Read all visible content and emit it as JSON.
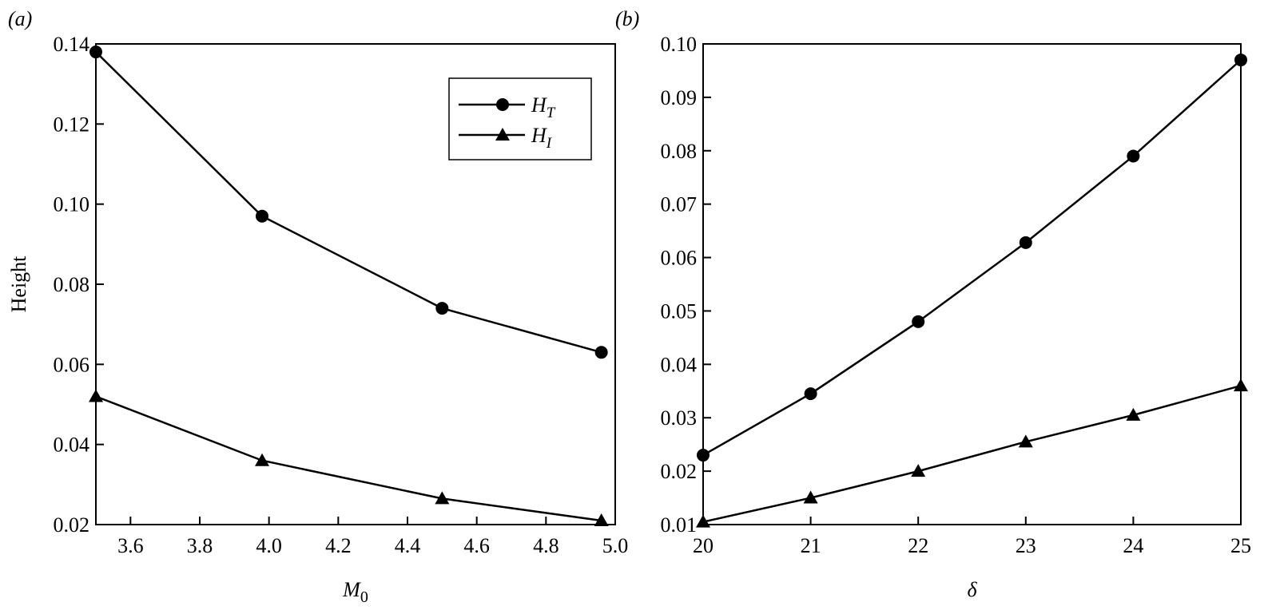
{
  "chart_data": [
    {
      "type": "line",
      "panel_label": "(a)",
      "ylabel": "Height",
      "xlabel": "M",
      "xlabel_sub": "0",
      "x": [
        3.5,
        3.98,
        4.5,
        4.96
      ],
      "series": [
        {
          "name": "H",
          "name_sub": "T",
          "color": "#000000",
          "marker": "circle",
          "values": [
            0.138,
            0.097,
            0.074,
            0.063
          ]
        },
        {
          "name": "H",
          "name_sub": "I",
          "color": "#000000",
          "marker": "triangle",
          "values": [
            0.052,
            0.036,
            0.0265,
            0.021
          ]
        }
      ],
      "xlim": [
        3.5,
        5.0
      ],
      "xticks": [
        3.6,
        3.8,
        {
          "value": 4,
          "label": "4.0"
        },
        4.2,
        4.4,
        4.6,
        4.8,
        {
          "value": 5,
          "label": "5.0"
        }
      ],
      "ylim": [
        0.02,
        0.14
      ],
      "yticks": [
        0.02,
        0.04,
        0.06,
        0.08,
        {
          "value": 0.1,
          "label": "0.10"
        },
        0.12,
        0.14
      ],
      "legend": "upper right"
    },
    {
      "type": "line",
      "panel_label": "(b)",
      "xlabel": "δ",
      "x": [
        20,
        21,
        22,
        23,
        24,
        25
      ],
      "series": [
        {
          "color": "#000000",
          "marker": "circle",
          "values": [
            0.023,
            0.0345,
            0.048,
            0.0628,
            0.079,
            0.097
          ]
        },
        {
          "color": "#000000",
          "marker": "triangle",
          "values": [
            0.0105,
            0.015,
            0.02,
            0.0255,
            0.0305,
            0.036
          ]
        }
      ],
      "xlim": [
        20,
        25
      ],
      "xticks": [
        20,
        21,
        22,
        23,
        24,
        25
      ],
      "ylim": [
        0.01,
        0.1
      ],
      "yticks": [
        0.01,
        0.02,
        0.03,
        0.04,
        0.05,
        0.06,
        0.07,
        0.08,
        0.09,
        {
          "value": 0.1,
          "label": "0.10"
        }
      ]
    }
  ]
}
